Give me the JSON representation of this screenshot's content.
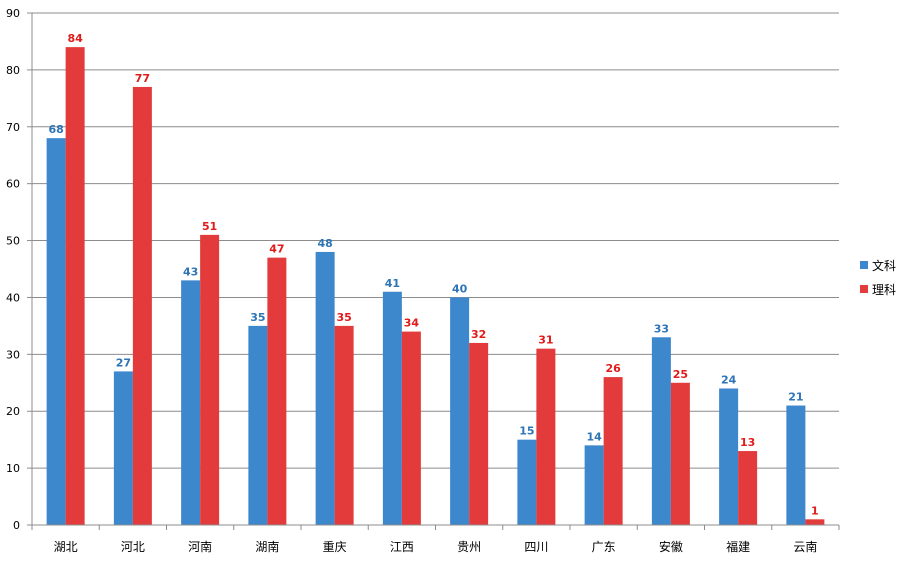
{
  "chart_data": {
    "type": "bar",
    "categories": [
      "湖北",
      "河北",
      "河南",
      "湖南",
      "重庆",
      "江西",
      "贵州",
      "四川",
      "广东",
      "安徽",
      "福建",
      "云南"
    ],
    "series": [
      {
        "name": "文科",
        "color": "#3d87cd",
        "label_color": "#2e75b6",
        "values": [
          68,
          27,
          43,
          35,
          48,
          41,
          40,
          15,
          14,
          33,
          24,
          21
        ]
      },
      {
        "name": "理科",
        "color": "#e33b3b",
        "label_color": "#e01b1b",
        "values": [
          84,
          77,
          51,
          47,
          35,
          34,
          32,
          31,
          26,
          25,
          13,
          1
        ]
      }
    ],
    "yticks": [
      "0",
      "10",
      "20",
      "30",
      "40",
      "50",
      "60",
      "70",
      "80",
      "90"
    ],
    "ylim": [
      0,
      90
    ],
    "grid": true,
    "legend_position": "right",
    "data_labels": true
  }
}
